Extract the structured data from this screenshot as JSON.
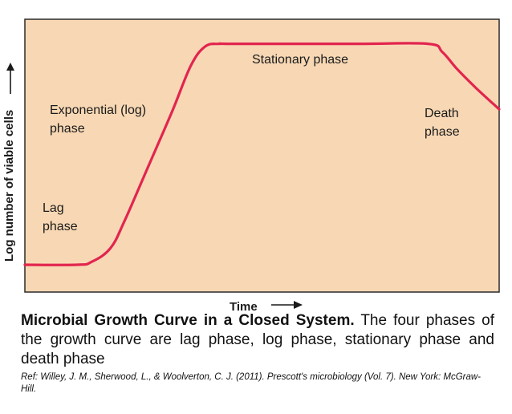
{
  "chart_data": {
    "type": "line",
    "xlabel": "Time",
    "ylabel": "Log number of viable cells",
    "x_arrow": "right",
    "y_arrow": "up",
    "axis_ticks": false,
    "grid": false,
    "background_color": "#f8d8b4",
    "line_color": "#e2254f",
    "xlim": [
      0,
      100
    ],
    "ylim": [
      0,
      100
    ],
    "series": [
      {
        "x": [
          0,
          11,
          14,
          18,
          21,
          26,
          31,
          35,
          38,
          41,
          44,
          70,
          85,
          88,
          91,
          95,
          100
        ],
        "y": [
          10,
          10,
          11,
          16,
          26,
          46,
          66,
          83,
          90,
          91,
          91,
          91,
          91,
          88,
          82,
          75,
          67
        ]
      }
    ],
    "annotations": [
      {
        "id": "lag",
        "lines": [
          "Lag",
          "phase"
        ]
      },
      {
        "id": "exponential",
        "lines": [
          "Exponential (log)",
          "phase"
        ]
      },
      {
        "id": "stationary",
        "lines": [
          "Stationary phase"
        ]
      },
      {
        "id": "death",
        "lines": [
          "Death",
          "phase"
        ]
      }
    ]
  },
  "caption": {
    "title": "Microbial Growth Curve in a Closed System.",
    "text": " The four phases of the growth curve are lag phase, log phase, stationary phase and death phase",
    "reference": "Ref: Willey, J. M., Sherwood, L., & Woolverton, C. J. (2011). Prescott's microbiology (Vol. 7). New York: McGraw-Hill."
  }
}
